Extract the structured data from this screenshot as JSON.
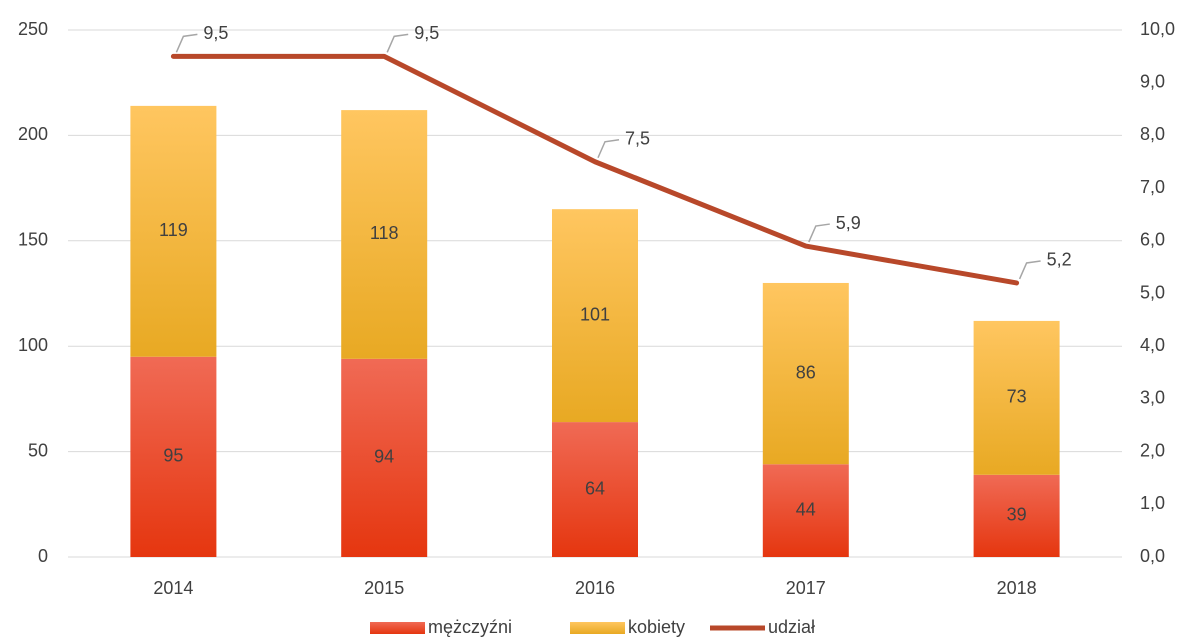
{
  "chart_data": {
    "type": "bar",
    "stacked": true,
    "categories": [
      "2014",
      "2015",
      "2016",
      "2017",
      "2018"
    ],
    "series": [
      {
        "name": "mężczyźni",
        "color": "#e8401c",
        "values": [
          95,
          94,
          64,
          44,
          39
        ]
      },
      {
        "name": "kobiety",
        "color": "#f2b535",
        "values": [
          119,
          118,
          101,
          86,
          73
        ]
      },
      {
        "name": "udział",
        "type": "line",
        "axis": "y2",
        "color": "#b8482a",
        "values": [
          9.5,
          9.5,
          7.5,
          5.9,
          5.2
        ],
        "value_labels": [
          "9,5",
          "9,5",
          "7,5",
          "5,9",
          "5,2"
        ]
      }
    ],
    "ylim": [
      0,
      250
    ],
    "yticks": [
      0,
      50,
      100,
      150,
      200,
      250
    ],
    "y2lim": [
      0,
      10
    ],
    "y2ticks": [
      {
        "value": 0,
        "label": "0,0"
      },
      {
        "value": 1,
        "label": "1,0"
      },
      {
        "value": 2,
        "label": "2,0"
      },
      {
        "value": 3,
        "label": "3,0"
      },
      {
        "value": 4,
        "label": "4,0"
      },
      {
        "value": 5,
        "label": "5,0"
      },
      {
        "value": 6,
        "label": "6,0"
      },
      {
        "value": 7,
        "label": "7,0"
      },
      {
        "value": 8,
        "label": "8,0"
      },
      {
        "value": 9,
        "label": "9,0"
      },
      {
        "value": 10,
        "label": "10,0"
      }
    ],
    "grid": true,
    "legend": "bottom"
  }
}
